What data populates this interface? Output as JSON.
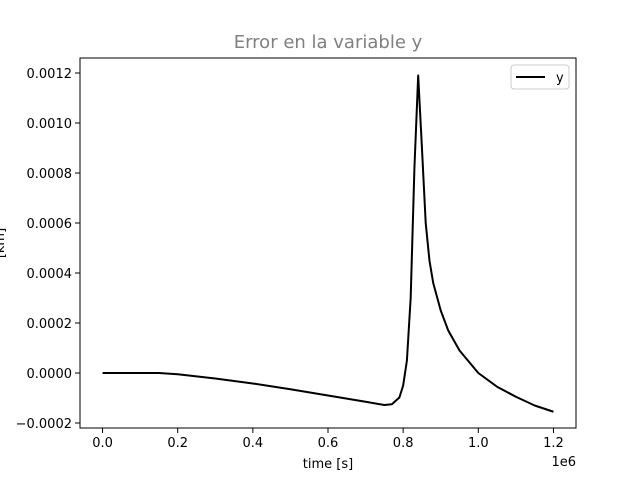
{
  "chart_data": {
    "type": "line",
    "title": "Error en la variable y",
    "xlabel": "time [s]",
    "ylabel": "[km]",
    "x_offset_label": "1e6",
    "xlim": [
      -0.06,
      1.26
    ],
    "ylim": [
      -0.00022,
      0.00126
    ],
    "x_ticks": [
      0.0,
      0.2,
      0.4,
      0.6,
      0.8,
      1.0,
      1.2
    ],
    "x_tick_labels": [
      "0.0",
      "0.2",
      "0.4",
      "0.6",
      "0.8",
      "1.0",
      "1.2"
    ],
    "y_ticks": [
      -0.0002,
      0.0,
      0.0002,
      0.0004,
      0.0006,
      0.0008,
      0.001,
      0.0012
    ],
    "y_tick_labels": [
      "−0.0002",
      "0.0000",
      "0.0002",
      "0.0004",
      "0.0006",
      "0.0008",
      "0.0010",
      "0.0012"
    ],
    "grid": false,
    "legend_position": "top-right",
    "colors": {
      "title": "#808080",
      "line": "#000000",
      "axes": "#000000"
    },
    "series": [
      {
        "name": "y",
        "x": [
          0.0,
          0.05,
          0.1,
          0.15,
          0.2,
          0.3,
          0.4,
          0.5,
          0.6,
          0.7,
          0.75,
          0.77,
          0.79,
          0.8,
          0.81,
          0.82,
          0.83,
          0.84,
          0.85,
          0.86,
          0.87,
          0.88,
          0.9,
          0.92,
          0.95,
          1.0,
          1.05,
          1.1,
          1.15,
          1.2
        ],
        "y": [
          0.0,
          0.0,
          0.0,
          0.0,
          -5e-06,
          -2.2e-05,
          -4.2e-05,
          -6.5e-05,
          -9e-05,
          -0.000115,
          -0.000128,
          -0.000125,
          -9.8e-05,
          -5e-05,
          5e-05,
          0.0003,
          0.00082,
          0.00119,
          0.0009,
          0.0006,
          0.00045,
          0.00036,
          0.00025,
          0.00017,
          9e-05,
          0.0,
          -5.5e-05,
          -9.5e-05,
          -0.00013,
          -0.000155
        ]
      }
    ]
  }
}
